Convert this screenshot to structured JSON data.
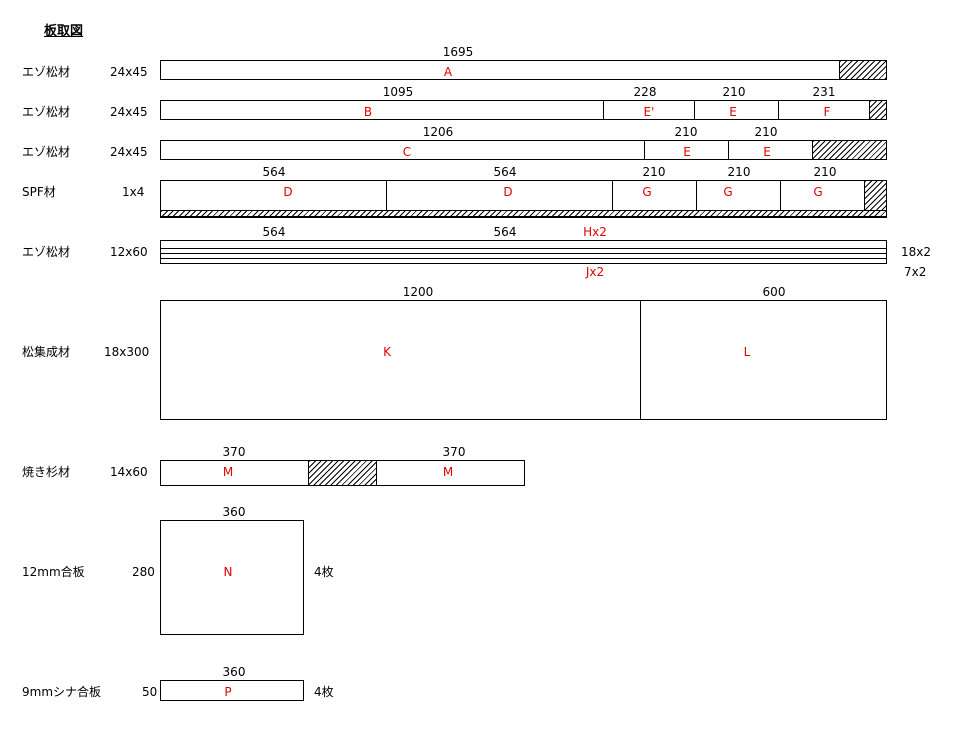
{
  "title": "板取図",
  "rows": [
    {
      "material": "エゾ松材",
      "size": "24x45",
      "dims": [
        "1695"
      ],
      "labels": [
        "A"
      ]
    },
    {
      "material": "エゾ松材",
      "size": "24x45",
      "dims": [
        "1095",
        "228",
        "210",
        "231"
      ],
      "labels": [
        "B",
        "E'",
        "E",
        "F"
      ]
    },
    {
      "material": "エゾ松材",
      "size": "24x45",
      "dims": [
        "1206",
        "210",
        "210"
      ],
      "labels": [
        "C",
        "E",
        "E"
      ]
    },
    {
      "material": "SPF材",
      "size": "1x4",
      "dims": [
        "564",
        "564",
        "210",
        "210",
        "210"
      ],
      "labels": [
        "D",
        "D",
        "G",
        "G",
        "G"
      ]
    },
    {
      "material": "エゾ松材",
      "size": "12x60",
      "dims": [
        "564",
        "564"
      ],
      "labels": [
        "Hx2",
        "Jx2"
      ],
      "counts": [
        "18x2",
        "7x2"
      ]
    },
    {
      "material": "松集成材",
      "size": "18x300",
      "dims": [
        "1200",
        "600"
      ],
      "labels": [
        "K",
        "L"
      ]
    },
    {
      "material": "焼き杉材",
      "size": "14x60",
      "dims": [
        "370",
        "370"
      ],
      "labels": [
        "M",
        "M"
      ]
    },
    {
      "material": "12mm合板",
      "size": "280",
      "dims": [
        "360"
      ],
      "labels": [
        "N"
      ],
      "count": "4枚"
    },
    {
      "material": "9mmシナ合板",
      "size": "50",
      "dims": [
        "360"
      ],
      "labels": [
        "P"
      ],
      "count": "4枚"
    }
  ],
  "colors": {
    "label": "#e00000",
    "line": "#000000"
  }
}
